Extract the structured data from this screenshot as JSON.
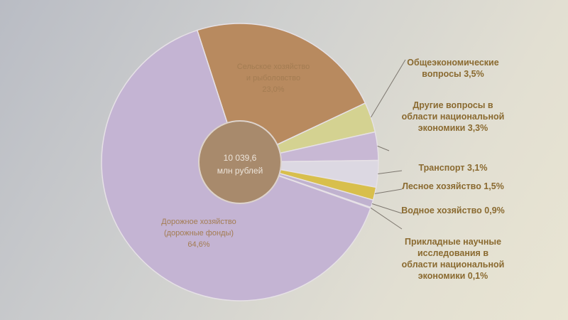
{
  "chart_data": {
    "type": "pie",
    "center_label": {
      "line1": "10 039,6",
      "line2": "млн рублей"
    },
    "slices": [
      {
        "label_lines": [
          "Сельское хозяйство",
          "и рыболовство",
          "23,0%"
        ],
        "value": 23.0,
        "color": "#b88a5f"
      },
      {
        "label_lines": [
          "Общеэкономические",
          "вопросы 3,5%"
        ],
        "value": 3.5,
        "color": "#d4d291"
      },
      {
        "label_lines": [
          "Другие вопросы в",
          "области национальной",
          "экономики 3,3%"
        ],
        "value": 3.3,
        "color": "#c8b8d4"
      },
      {
        "label_lines": [
          "Транспорт 3,1%"
        ],
        "value": 3.1,
        "color": "#dcd8e2"
      },
      {
        "label_lines": [
          "Лесное хозяйство 1,5%"
        ],
        "value": 1.5,
        "color": "#d8bf4c"
      },
      {
        "label_lines": [
          "Водное хозяйство 0,9%"
        ],
        "value": 0.9,
        "color": "#c0b2cf"
      },
      {
        "label_lines": [
          "Прикладные научные",
          "исследования в",
          "области национальной",
          "экономики 0,1%"
        ],
        "value": 0.1,
        "color": "#b9a9c9"
      },
      {
        "label_lines": [
          "Дорожное хозяйство",
          "(дорожные фонды)",
          "64,6%"
        ],
        "value": 64.6,
        "color": "#c4b4d3"
      }
    ]
  }
}
